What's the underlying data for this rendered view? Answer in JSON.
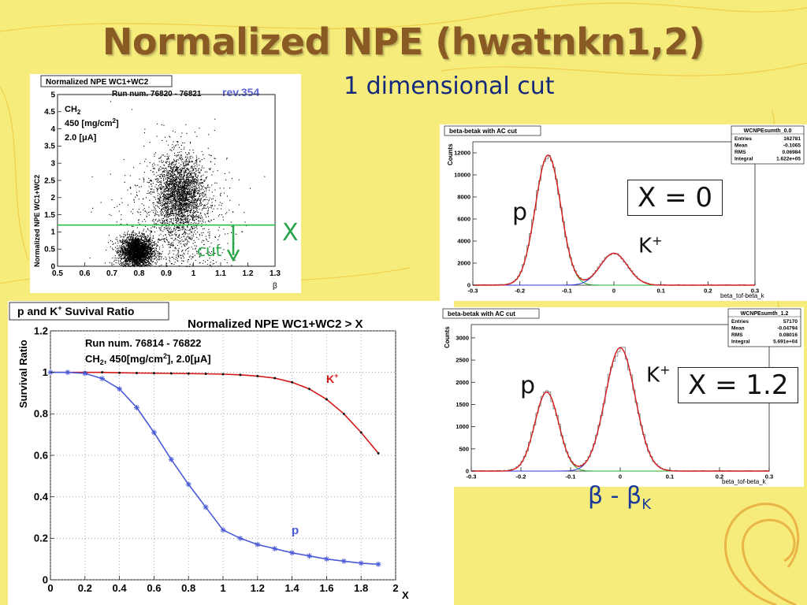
{
  "slide": {
    "title": "Normalized NPE (hwatnkn1,2)",
    "subtitle": "1 dimensional cut",
    "overlay_x": "X",
    "overlay_cut": "cut",
    "box1": "X = 0",
    "box2": "X = 1.2",
    "p_label": "p",
    "k_label_base": "K",
    "k_label_sup": "+",
    "beta_label_main": "β - β",
    "beta_label_sub": "K"
  },
  "chart_data": [
    {
      "id": "scatter",
      "type": "scatter",
      "title": "Normalized NPE WC1+WC2",
      "run": "Run num. 76820 - 76821",
      "rev": "rev.354",
      "info_line1": "CH",
      "info_line1_sub": "2",
      "info_line2": "450 [mg/cm",
      "info_line2_sup": "2",
      "info_line2_end": "]",
      "info_line3": "2.0 [μA]",
      "xlabel": "β",
      "ylabel": "Normalized NPE WC1+WC2",
      "xlim": [
        0.5,
        1.3
      ],
      "ylim": [
        0,
        5
      ],
      "xticks": [
        "0.5",
        "0.6",
        "0.7",
        "0.8",
        "0.9",
        "1",
        "1.1",
        "1.2",
        "1.3"
      ],
      "yticks": [
        "0",
        "0.5",
        "1",
        "1.5",
        "2",
        "2.5",
        "3",
        "3.5",
        "4",
        "4.5",
        "5"
      ],
      "cut_y": 1.2,
      "clusters": [
        {
          "x": 0.79,
          "y": 0.45,
          "sx": 0.03,
          "sy": 0.22,
          "n": 2600
        },
        {
          "x": 0.95,
          "y": 2.1,
          "sx": 0.045,
          "sy": 0.55,
          "n": 2400
        },
        {
          "x": 0.93,
          "y": 1.3,
          "sx": 0.1,
          "sy": 1.1,
          "n": 900
        }
      ]
    },
    {
      "id": "survival",
      "type": "line",
      "box_title": "p and K",
      "box_title_sup": "+",
      "box_title_end": " Suvival Ratio",
      "title": "Normalized NPE WC1+WC2 > X",
      "info_line1": "Run num. 76814 - 76822",
      "info_line2a": "CH",
      "info_line2_sub": "2",
      "info_line2b": ", 450[mg/cm",
      "info_line2_sup": "2",
      "info_line2c": "], 2.0[μA]",
      "xlabel": "X",
      "ylabel": "Survival Ratio",
      "xlim": [
        0,
        2
      ],
      "ylim": [
        0,
        1.2
      ],
      "xticks": [
        "0",
        "0.2",
        "0.4",
        "0.6",
        "0.8",
        "1",
        "1.2",
        "1.4",
        "1.6",
        "1.8",
        "2"
      ],
      "yticks": [
        "0",
        "0.2",
        "0.4",
        "0.6",
        "0.8",
        "1",
        "1.2"
      ],
      "grid": true,
      "series": [
        {
          "name": "K",
          "name_sup": "+",
          "color": "#d41818",
          "x": [
            0.0,
            0.1,
            0.2,
            0.3,
            0.4,
            0.5,
            0.6,
            0.7,
            0.8,
            0.9,
            1.0,
            1.1,
            1.2,
            1.3,
            1.4,
            1.5,
            1.6,
            1.7,
            1.8,
            1.9
          ],
          "y": [
            1.0,
            1.0,
            1.0,
            1.0,
            0.998,
            0.997,
            0.996,
            0.995,
            0.994,
            0.993,
            0.991,
            0.988,
            0.982,
            0.972,
            0.952,
            0.92,
            0.87,
            0.8,
            0.71,
            0.61
          ]
        },
        {
          "name": "p",
          "color": "#4a5ad8",
          "x": [
            0.0,
            0.1,
            0.2,
            0.3,
            0.4,
            0.5,
            0.6,
            0.7,
            0.8,
            0.9,
            1.0,
            1.1,
            1.2,
            1.3,
            1.4,
            1.5,
            1.6,
            1.7,
            1.8,
            1.9
          ],
          "y": [
            1.0,
            1.0,
            0.995,
            0.97,
            0.92,
            0.83,
            0.71,
            0.58,
            0.46,
            0.35,
            0.24,
            0.2,
            0.17,
            0.15,
            0.13,
            0.115,
            0.1,
            0.09,
            0.08,
            0.075
          ]
        }
      ]
    },
    {
      "id": "hist1",
      "type": "area",
      "box_title": "beta-betak with AC cut",
      "stats_title": "WCNPEsumth_0.0",
      "stats": [
        [
          "Entries",
          "162781"
        ],
        [
          "Mean",
          "-0.1065"
        ],
        [
          "RMS",
          "0.06984"
        ],
        [
          "Integral",
          "1.622e+05"
        ]
      ],
      "xlabel": "beta_tof-beta_k",
      "ylabel": "Counts",
      "xlim": [
        -0.3,
        0.3
      ],
      "ylim": [
        0,
        13000
      ],
      "xticks": [
        "-0.3",
        "-0.2",
        "-0.1",
        "0",
        "0.1",
        "0.2",
        "0.3"
      ],
      "yticks": [
        "0",
        "2000",
        "4000",
        "6000",
        "8000",
        "10000",
        "12000"
      ],
      "peaks": [
        {
          "mu": -0.14,
          "sigma": 0.027,
          "amp": 11800
        },
        {
          "mu": 0.0,
          "sigma": 0.029,
          "amp": 2900
        }
      ]
    },
    {
      "id": "hist2",
      "type": "area",
      "box_title": "beta-betak with AC cut",
      "stats_title": "WCNPEsumth_1.2",
      "stats": [
        [
          "Entries",
          "57170"
        ],
        [
          "Mean",
          "-0.04794"
        ],
        [
          "RMS",
          "0.08016"
        ],
        [
          "Integral",
          "5.691e+04"
        ]
      ],
      "xlabel": "beta_tof-beta_k",
      "ylabel": "Counts",
      "xlim": [
        -0.3,
        0.3
      ],
      "ylim": [
        0,
        3300
      ],
      "xticks": [
        "-0.3",
        "-0.2",
        "-0.1",
        "0",
        "0.1",
        "0.2",
        "0.3"
      ],
      "yticks": [
        "0",
        "500",
        "1000",
        "1500",
        "2000",
        "2500",
        "3000"
      ],
      "peaks": [
        {
          "mu": -0.148,
          "sigma": 0.024,
          "amp": 1780
        },
        {
          "mu": 0.0,
          "sigma": 0.03,
          "amp": 2780
        }
      ]
    }
  ]
}
